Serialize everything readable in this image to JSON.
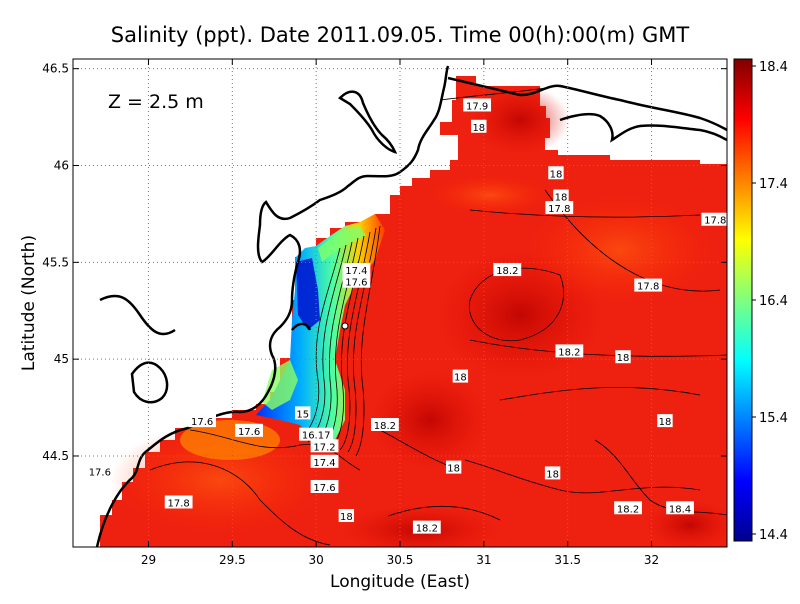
{
  "chart_data": {
    "type": "heatmap",
    "title": "Salinity (ppt). Date 2011.09.05. Time 00(h):00(m) GMT",
    "annotation": "Z = 2.5 m",
    "xlabel": "Longitude (East)",
    "ylabel": "Latitude (North)",
    "xlim": [
      28.55,
      32.45
    ],
    "ylim": [
      44.03,
      46.55
    ],
    "x_ticks": [
      29,
      29.5,
      30,
      30.5,
      31,
      31.5,
      32
    ],
    "x_tick_labels": [
      "29",
      "29.5",
      "30",
      "30.5",
      "31",
      "31.5",
      "32"
    ],
    "y_ticks": [
      44.5,
      45,
      45.5,
      46,
      46.5
    ],
    "y_tick_labels": [
      "44.5",
      "45",
      "45.5",
      "46",
      "46.5"
    ],
    "grid": true,
    "colorbar": {
      "range": [
        14.4,
        18.4
      ],
      "ticks": [
        14.4,
        15.4,
        16.4,
        17.4,
        18.4
      ],
      "tick_labels": [
        "14.4",
        "15.4",
        "16.4",
        "17.4",
        "18.4"
      ],
      "colormap": "jet"
    },
    "contour_labels": [
      {
        "text": "17.9",
        "lon": 30.96,
        "lat": 46.31
      },
      {
        "text": "18",
        "lon": 30.97,
        "lat": 46.2
      },
      {
        "text": "18",
        "lon": 31.43,
        "lat": 45.96
      },
      {
        "text": "18",
        "lon": 31.46,
        "lat": 45.84
      },
      {
        "text": "17.8",
        "lon": 31.45,
        "lat": 45.78
      },
      {
        "text": "17.8",
        "lon": 32.38,
        "lat": 45.72
      },
      {
        "text": "17.4",
        "lon": 30.24,
        "lat": 45.46
      },
      {
        "text": "17.6",
        "lon": 30.24,
        "lat": 45.4
      },
      {
        "text": "18.2",
        "lon": 31.14,
        "lat": 45.46
      },
      {
        "text": "17.8",
        "lon": 31.98,
        "lat": 45.38
      },
      {
        "text": "18.2",
        "lon": 31.51,
        "lat": 45.04
      },
      {
        "text": "18",
        "lon": 31.83,
        "lat": 45.01
      },
      {
        "text": "18",
        "lon": 30.86,
        "lat": 44.91
      },
      {
        "text": "18.2",
        "lon": 30.41,
        "lat": 44.66
      },
      {
        "text": "18",
        "lon": 32.08,
        "lat": 44.68
      },
      {
        "text": "17.6",
        "lon": 29.32,
        "lat": 44.68
      },
      {
        "text": "17.6",
        "lon": 29.6,
        "lat": 44.63
      },
      {
        "text": "15",
        "lon": 29.92,
        "lat": 44.72
      },
      {
        "text": "16.17",
        "lon": 30.0,
        "lat": 44.61
      },
      {
        "text": "17.2",
        "lon": 30.05,
        "lat": 44.55
      },
      {
        "text": "17.4",
        "lon": 30.05,
        "lat": 44.47
      },
      {
        "text": "17.6",
        "lon": 30.05,
        "lat": 44.34
      },
      {
        "text": "17.6",
        "lon": 28.71,
        "lat": 44.42
      },
      {
        "text": "17.8",
        "lon": 29.18,
        "lat": 44.26
      },
      {
        "text": "18",
        "lon": 30.82,
        "lat": 44.44
      },
      {
        "text": "18",
        "lon": 31.41,
        "lat": 44.41
      },
      {
        "text": "18",
        "lon": 30.18,
        "lat": 44.19
      },
      {
        "text": "18.2",
        "lon": 30.66,
        "lat": 44.13
      },
      {
        "text": "18.2",
        "lon": 31.86,
        "lat": 44.23
      },
      {
        "text": "18.4",
        "lon": 32.17,
        "lat": 44.23
      }
    ]
  }
}
